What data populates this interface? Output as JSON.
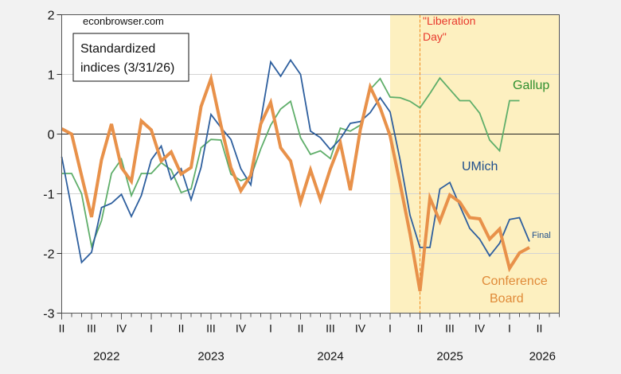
{
  "chart_data": {
    "type": "line",
    "title": "Standardized indices (3/31/26)",
    "legend_box": [
      "Standardized",
      "indices (3/31/26)"
    ],
    "watermark": "econbrowser.com",
    "xlabel": "",
    "ylabel": "",
    "ylim": [
      -3,
      2
    ],
    "yticks": [
      "2",
      "1",
      "0",
      "-1",
      "-2",
      "-3"
    ],
    "ytick_values": [
      2,
      1,
      0,
      -1,
      -2,
      -3
    ],
    "x_start": "2022-04",
    "x_frequency": "monthly",
    "x": [
      "2022-04",
      "2022-05",
      "2022-06",
      "2022-07",
      "2022-08",
      "2022-09",
      "2022-10",
      "2022-11",
      "2022-12",
      "2023-01",
      "2023-02",
      "2023-03",
      "2023-04",
      "2023-05",
      "2023-06",
      "2023-07",
      "2023-08",
      "2023-09",
      "2023-10",
      "2023-11",
      "2023-12",
      "2024-01",
      "2024-02",
      "2024-03",
      "2024-04",
      "2024-05",
      "2024-06",
      "2024-07",
      "2024-08",
      "2024-09",
      "2024-10",
      "2024-11",
      "2024-12",
      "2025-01",
      "2025-02",
      "2025-03",
      "2025-04",
      "2025-05",
      "2025-06",
      "2025-07",
      "2025-08",
      "2025-09",
      "2025-10",
      "2025-11",
      "2025-12",
      "2026-01",
      "2026-02",
      "2026-03"
    ],
    "quarter_ticks": [
      "II",
      "III",
      "IV",
      "I",
      "II",
      "III",
      "IV",
      "I",
      "II",
      "III",
      "IV",
      "I",
      "II",
      "III",
      "IV",
      "I",
      "II"
    ],
    "year_labels": [
      "2022",
      "2023",
      "2024",
      "2025",
      "2026"
    ],
    "series": [
      {
        "name": "UMich",
        "color": "#2e5f9e",
        "values": [
          -0.38,
          -1.25,
          -2.15,
          -1.98,
          -1.23,
          -1.16,
          -1.01,
          -1.38,
          -1.03,
          -0.43,
          -0.2,
          -0.76,
          -0.58,
          -1.1,
          -0.56,
          0.33,
          0.11,
          -0.09,
          -0.58,
          -0.85,
          0.22,
          1.21,
          0.97,
          1.24,
          1.0,
          0.05,
          -0.06,
          -0.26,
          -0.08,
          0.18,
          0.21,
          0.36,
          0.61,
          0.37,
          -0.43,
          -1.36,
          -1.9,
          -1.9,
          -0.92,
          -0.81,
          -1.2,
          -1.58,
          -1.76,
          -2.04,
          -1.83,
          -1.43,
          -1.4,
          -1.8
        ]
      },
      {
        "name": "Gallup",
        "color": "#5fae6a",
        "values": [
          -0.66,
          -0.66,
          -1.0,
          -1.88,
          -1.45,
          -0.66,
          -0.42,
          -1.03,
          -0.66,
          -0.66,
          -0.48,
          -0.6,
          -0.98,
          -0.92,
          -0.23,
          -0.09,
          -0.1,
          -0.67,
          -0.78,
          -0.72,
          -0.25,
          0.15,
          0.42,
          0.55,
          -0.06,
          -0.34,
          -0.28,
          -0.41,
          0.1,
          0.05,
          0.15,
          0.75,
          0.93,
          0.62,
          0.61,
          0.55,
          0.44,
          0.68,
          0.94,
          0.75,
          0.56,
          0.56,
          0.35,
          -0.1,
          -0.28,
          0.56,
          0.56,
          null
        ]
      },
      {
        "name": "Conference Board",
        "color": "#e8914a",
        "values": [
          0.09,
          0.0,
          -0.7,
          -1.39,
          -0.43,
          0.17,
          -0.56,
          -0.79,
          0.22,
          0.07,
          -0.45,
          -0.3,
          -0.67,
          -0.56,
          0.46,
          0.93,
          0.15,
          -0.56,
          -0.95,
          -0.69,
          0.17,
          0.53,
          -0.23,
          -0.45,
          -1.14,
          -0.6,
          -1.1,
          -0.58,
          -0.15,
          -0.94,
          0.07,
          0.79,
          0.44,
          -0.03,
          -0.83,
          -1.67,
          -2.63,
          -1.07,
          -1.46,
          -1.02,
          -1.14,
          -1.4,
          -1.42,
          -1.76,
          -1.59,
          -2.25,
          -1.99,
          -1.9
        ]
      }
    ],
    "series_labels": {
      "umich": "UMich",
      "gallup": "Gallup",
      "conference_board_line1": "Conference",
      "conference_board_line2": "Board",
      "final": "Final"
    },
    "annotations": {
      "liberation_day_line1": "\"Liberation",
      "liberation_day_line2": "Day\"",
      "liberation_day_date": "2025-04",
      "shaded_from": "2025-01",
      "shade_color": "#fdf0c0",
      "annotation_color": "#e8382c"
    },
    "grid": true,
    "legend": "inline labels"
  }
}
